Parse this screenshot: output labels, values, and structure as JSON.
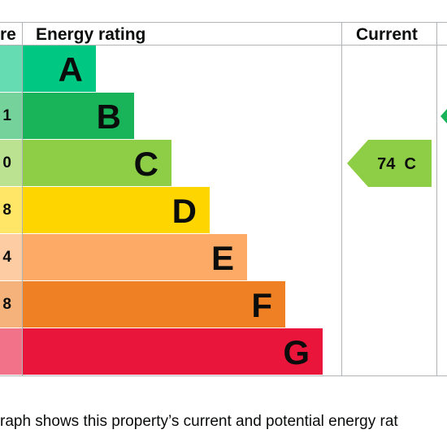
{
  "headers": {
    "score": "re",
    "rating": "Energy rating",
    "current": "Current"
  },
  "chart_data": {
    "type": "bar",
    "title": "",
    "categories": [
      "A",
      "B",
      "C",
      "D",
      "E",
      "F",
      "G"
    ],
    "score_labels": [
      "",
      "1",
      "0",
      "8",
      "4",
      "8",
      ""
    ],
    "colors": [
      "#00c781",
      "#19b459",
      "#8dce46",
      "#ffd500",
      "#fcaa65",
      "#ef8023",
      "#e9153b"
    ],
    "score_colors": [
      "#66dcb3",
      "#75d29b",
      "#bbe290",
      "#ffe666",
      "#fdcca3",
      "#f5b37b",
      "#f27389"
    ],
    "current": {
      "label": "74  C",
      "score": 74,
      "band": "C",
      "color": "#8dce46"
    },
    "potential": {
      "band": "B",
      "color": "#19b459"
    }
  },
  "caption": "raph shows this property’s current and potential energy rat"
}
